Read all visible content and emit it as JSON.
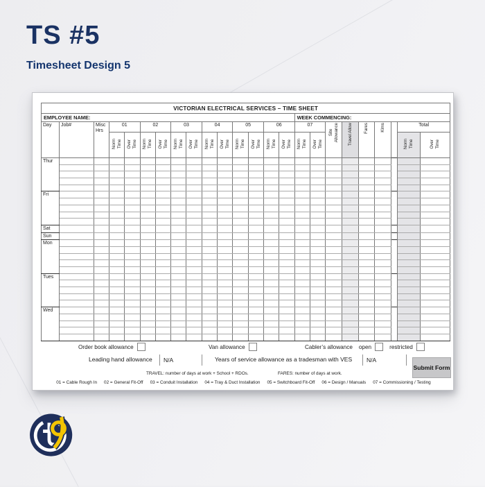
{
  "page": {
    "title": "TS #5",
    "subtitle": "Timesheet Design 5"
  },
  "form": {
    "title": "VICTORIAN ELECTRICAL SERVICES – TIME SHEET",
    "employee_label": "EMPLOYEE NAME:",
    "week_label": "WEEK COMMENCING:",
    "columns": {
      "day": "Day",
      "job": "Job#",
      "misc": "Misc\nHrs"
    },
    "job_codes": [
      "01",
      "02",
      "03",
      "04",
      "05",
      "06",
      "07"
    ],
    "time_sub": [
      "Norm\nTime",
      "Over\nTime"
    ],
    "vertical_cols": [
      "Site\nAllowance",
      "Travel Allow",
      "Fares",
      "Klms"
    ],
    "total_label": "Total",
    "days": [
      {
        "label": "Thur",
        "rows": 5
      },
      {
        "label": "Fri",
        "rows": 5
      },
      {
        "label": "Sat",
        "rows": 1
      },
      {
        "label": "Sun",
        "rows": 1
      },
      {
        "label": "Mon",
        "rows": 5
      },
      {
        "label": "Tues",
        "rows": 5
      },
      {
        "label": "Wed",
        "rows": 5
      }
    ],
    "order_book_label": "Order book allowance",
    "van_label": "Van allowance",
    "cabler_label": "Cabler’s allowance",
    "open_label": "open",
    "restricted_label": "restricted",
    "leading_hand": {
      "label": "Leading hand allowance",
      "value": "N/A"
    },
    "years_service": {
      "label": "Years of service allowance as a tradesman with VES",
      "value": "N/A"
    },
    "submit_label": "Submit Form",
    "travel_note": "TRAVEL: number of days at work + School + RDOs.",
    "fares_note": "FARES: number of days at work.",
    "legend_items": [
      "01 = Cable Rough In",
      "02 = General Fit-Off",
      "03 = Conduit Installation",
      "04 = Tray & Duct Installation",
      "05 = Switchboard Fit-Off",
      "06 = Design / Manuals",
      "07 = Commissioning / Testing"
    ]
  },
  "logo": {
    "monogram": "tP"
  },
  "colors": {
    "heading_navy": "#1a3263",
    "logo_navy": "#1f2f5b",
    "logo_yellow": "#f3c403",
    "shade_gray": "#e4e4e7",
    "button_gray": "#c7c7c9",
    "background": "#f0f0f3"
  }
}
